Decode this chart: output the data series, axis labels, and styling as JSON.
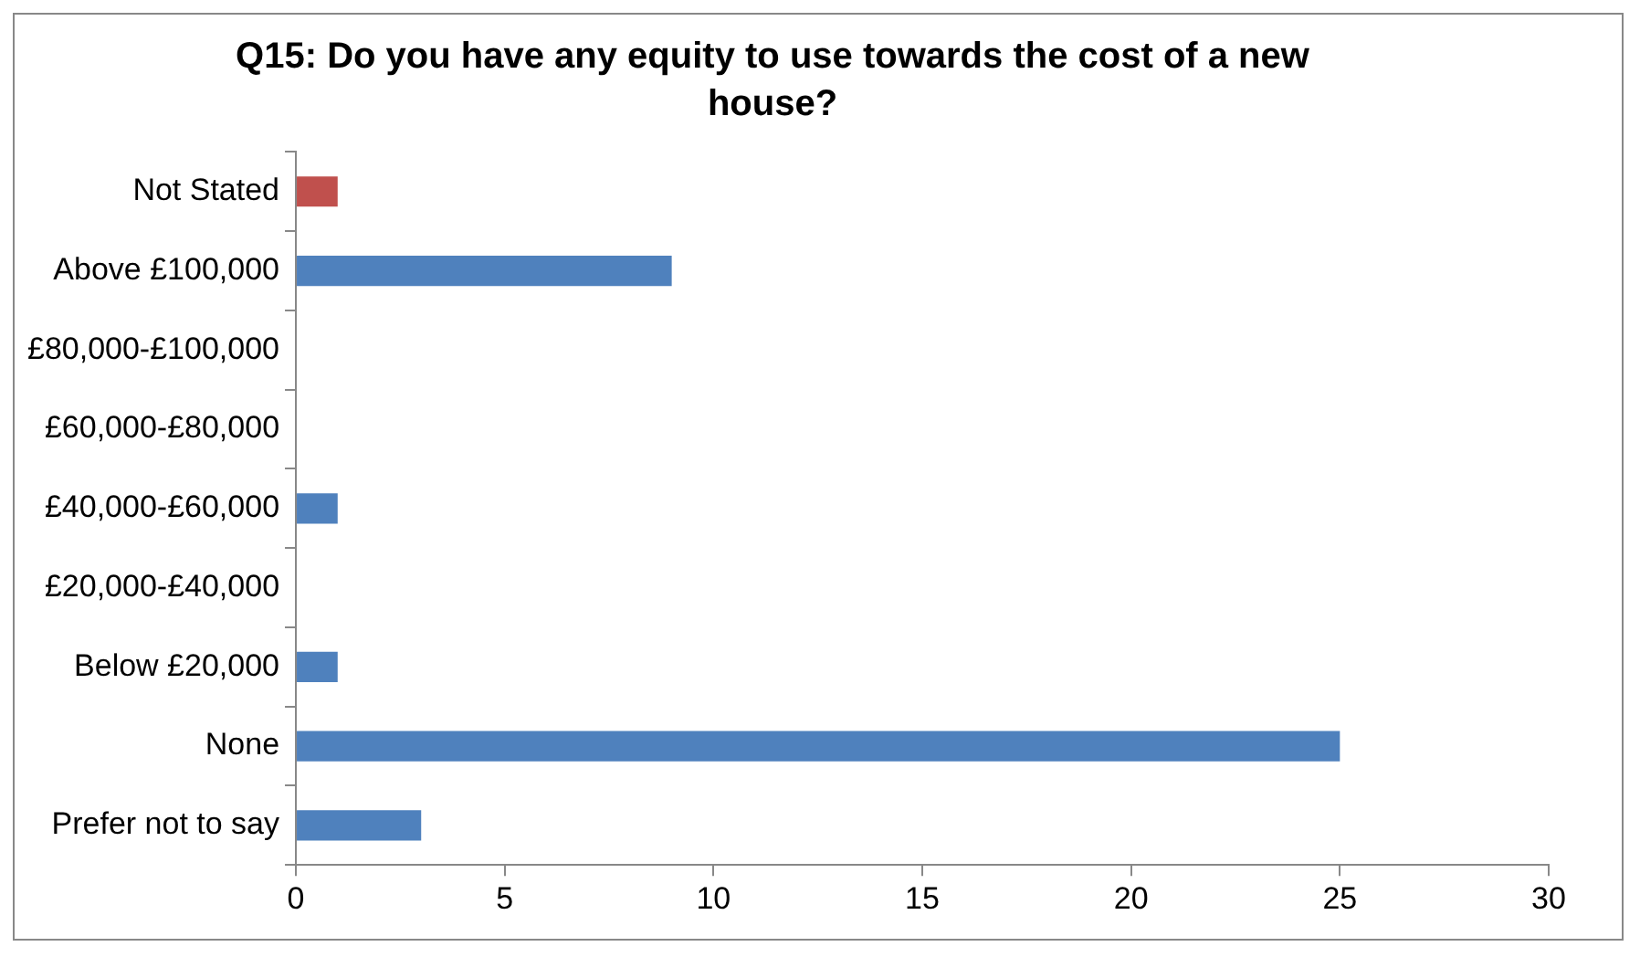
{
  "chart_data": {
    "type": "bar",
    "orientation": "horizontal",
    "title": "Q15: Do you have any equity to use towards the cost of a new house?",
    "categories": [
      "Not Stated",
      "Above £100,000",
      "£80,000-£100,000",
      "£60,000-£80,000",
      "£40,000-£60,000",
      "£20,000-£40,000",
      "Below £20,000",
      "None",
      "Prefer not to say"
    ],
    "values": [
      1,
      9,
      0,
      0,
      1,
      0,
      1,
      25,
      3
    ],
    "colors": [
      "#c0504d",
      "#4f81bd",
      "#4f81bd",
      "#4f81bd",
      "#4f81bd",
      "#4f81bd",
      "#4f81bd",
      "#4f81bd",
      "#4f81bd"
    ],
    "xlim": [
      0,
      30
    ],
    "xticks": [
      0,
      5,
      10,
      15,
      20,
      25,
      30
    ],
    "grid": false,
    "legend": false
  }
}
